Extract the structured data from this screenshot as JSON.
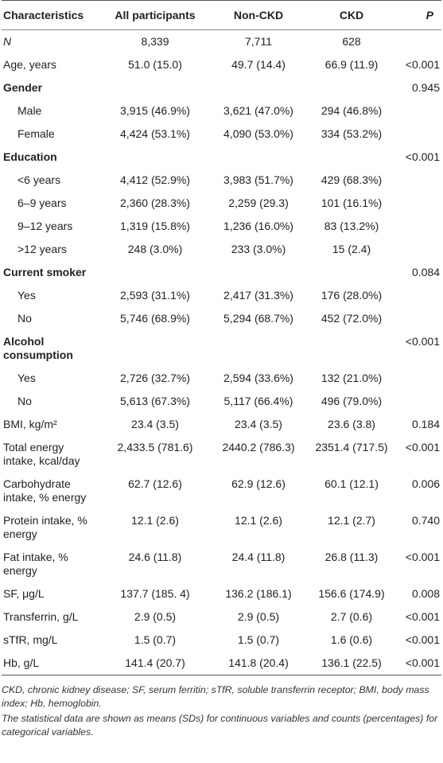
{
  "table": {
    "header": [
      "Characteristics",
      "All participants",
      "Non-CKD",
      "CKD",
      "P"
    ],
    "rows": [
      {
        "label": "N",
        "cells": [
          "8,339",
          "7,711",
          "628",
          null
        ]
      },
      {
        "label": "Age, years",
        "cells": [
          "51.0 (15.0)",
          "49.7 (14.4)",
          "66.9 (11.9)",
          "<0.001"
        ]
      },
      {
        "label": "Gender",
        "cells": [
          null,
          null,
          null,
          "0.945"
        ],
        "items": [
          {
            "label": "Male",
            "cells": [
              "3,915 (46.9%)",
              "3,621 (47.0%)",
              "294 (46.8%)",
              null
            ]
          },
          {
            "label": "Female",
            "cells": [
              "4,424 (53.1%)",
              "4,090 (53.0%)",
              "334 (53.2%)",
              null
            ]
          }
        ]
      },
      {
        "label": "Education",
        "cells": [
          null,
          null,
          null,
          "<0.001"
        ],
        "items": [
          {
            "label": "<6 years",
            "cells": [
              "4,412 (52.9%)",
              "3,983 (51.7%)",
              "429 (68.3%)",
              null
            ]
          },
          {
            "label": "6–9 years",
            "cells": [
              "2,360 (28.3%)",
              "2,259 (29.3)",
              "101 (16.1%)",
              null
            ]
          },
          {
            "label": "9–12 years",
            "cells": [
              "1,319 (15.8%)",
              "1,236 (16.0%)",
              "83 (13.2%)",
              null
            ]
          },
          {
            "label": ">12 years",
            "cells": [
              "248 (3.0%)",
              "233 (3.0%)",
              "15 (2.4)",
              null
            ]
          }
        ]
      },
      {
        "label": "Current smoker",
        "cells": [
          null,
          null,
          null,
          "0.084"
        ],
        "items": [
          {
            "label": "Yes",
            "cells": [
              "2,593 (31.1%)",
              "2,417 (31.3%)",
              "176 (28.0%)",
              null
            ]
          },
          {
            "label": "No",
            "cells": [
              "5,746 (68.9%)",
              "5,294 (68.7%)",
              "452 (72.0%)",
              null
            ]
          }
        ]
      },
      {
        "label": "Alcohol consumption",
        "cells": [
          null,
          null,
          null,
          "<0.001"
        ],
        "items": [
          {
            "label": "Yes",
            "cells": [
              "2,726 (32.7%)",
              "2,594 (33.6%)",
              "132 (21.0%)",
              null
            ]
          },
          {
            "label": "No",
            "cells": [
              "5,613 (67.3%)",
              "5,117 (66.4%)",
              "496 (79.0%)",
              null
            ]
          }
        ]
      },
      {
        "label": "BMI, kg/m²",
        "cells": [
          "23.4 (3.5)",
          "23.4 (3.5)",
          "23.6 (3.8)",
          "0.184"
        ]
      },
      {
        "label": "Total energy intake, kcal/day",
        "cells": [
          "2,433.5 (781.6)",
          "2440.2 (786.3)",
          "2351.4 (717.5)",
          "<0.001"
        ]
      },
      {
        "label": "Carbohydrate intake, % energy",
        "cells": [
          "62.7 (12.6)",
          "62.9 (12.6)",
          "60.1 (12.1)",
          "0.006"
        ]
      },
      {
        "label": "Protein intake, % energy",
        "cells": [
          "12.1 (2.6)",
          "12.1 (2.6)",
          "12.1 (2.7)",
          "0.740"
        ]
      },
      {
        "label": "Fat intake, % energy",
        "cells": [
          "24.6 (11.8)",
          "24.4 (11.8)",
          "26.8 (11.3)",
          "<0.001"
        ]
      },
      {
        "label": "SF, μg/L",
        "cells": [
          "137.7 (185. 4)",
          "136.2 (186.1)",
          "156.6 (174.9)",
          "0.008"
        ]
      },
      {
        "label": "Transferrin, g/L",
        "cells": [
          "2.9 (0.5)",
          "2.9 (0.5)",
          "2.7 (0.6)",
          "<0.001"
        ]
      },
      {
        "label": "sTfR, mg/L",
        "cells": [
          "1.5 (0.7)",
          "1.5 (0.7)",
          "1.6 (0.6)",
          "<0.001"
        ]
      },
      {
        "label": "Hb, g/L",
        "cells": [
          "141.4 (20.7)",
          "141.8 (20.4)",
          "136.1 (22.5)",
          "<0.001"
        ]
      }
    ],
    "notes": [
      "CKD, chronic kidney disease; SF, serum ferritin; sTfR, soluble transferrin receptor; BMI, body mass index; Hb, hemoglobin.",
      "The statistical data are shown as means (SDs) for continuous variables and counts (percentages) for categorical variables."
    ]
  }
}
